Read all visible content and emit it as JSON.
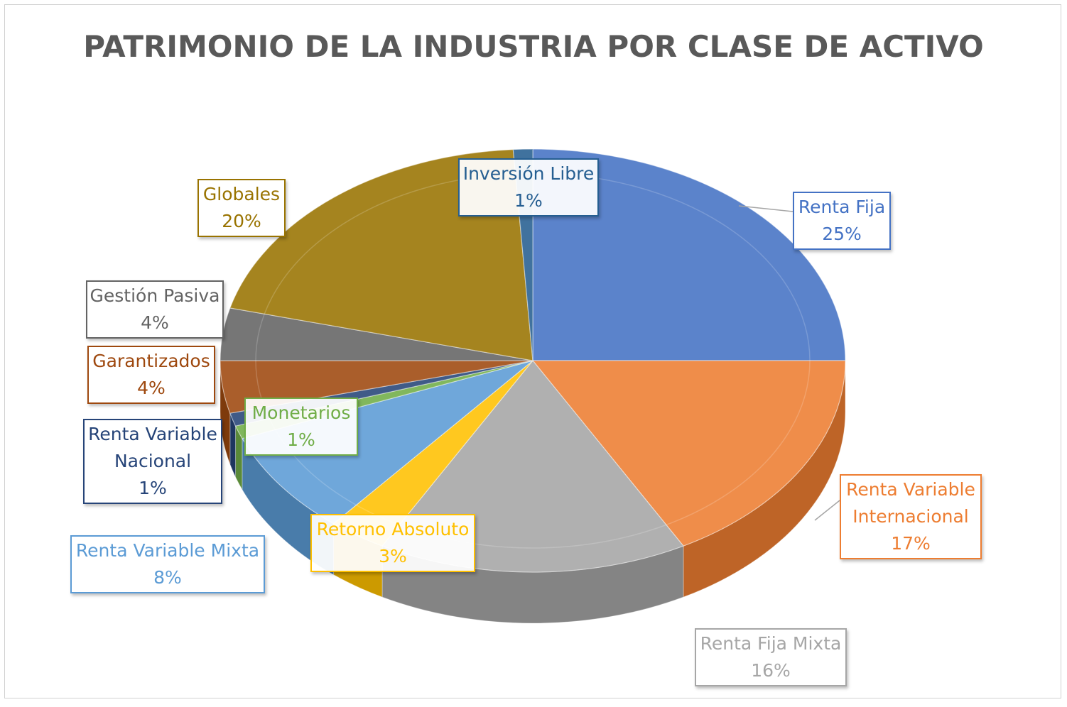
{
  "chart_data": {
    "type": "pie",
    "title": "PATRIMONIO DE LA INDUSTRIA POR CLASE DE ACTIVO",
    "three_d": true,
    "legend": "none (data labels with callouts)",
    "slices": [
      {
        "label": "Renta Fija",
        "value": 25,
        "display": "25%",
        "color": "#4472C4"
      },
      {
        "label": "Renta Variable Internacional",
        "display_lines": [
          "Renta Variable",
          "Internacional"
        ],
        "value": 17,
        "display": "17%",
        "color": "#ED7D31"
      },
      {
        "label": "Renta Fija Mixta",
        "value": 16,
        "display": "16%",
        "color": "#A5A5A5"
      },
      {
        "label": "Retorno Absoluto",
        "value": 3,
        "display": "3%",
        "color": "#FFC000"
      },
      {
        "label": "Renta Variable Mixta",
        "value": 8,
        "display": "8%",
        "color": "#5B9BD5"
      },
      {
        "label": "Monetarios",
        "value": 1,
        "display": "1%",
        "color": "#70AD47"
      },
      {
        "label": "Renta Variable Nacional",
        "display_lines": [
          "Renta Variable",
          "Nacional"
        ],
        "value": 1,
        "display": "1%",
        "color": "#264478"
      },
      {
        "label": "Garantizados",
        "value": 4,
        "display": "4%",
        "color": "#9E480E"
      },
      {
        "label": "Gestión Pasiva",
        "value": 4,
        "display": "4%",
        "color": "#636363"
      },
      {
        "label": "Globales",
        "value": 20,
        "display": "20%",
        "color": "#997300"
      },
      {
        "label": "Inversión Libre",
        "value": 1,
        "display": "1%",
        "color": "#255E91"
      }
    ]
  }
}
